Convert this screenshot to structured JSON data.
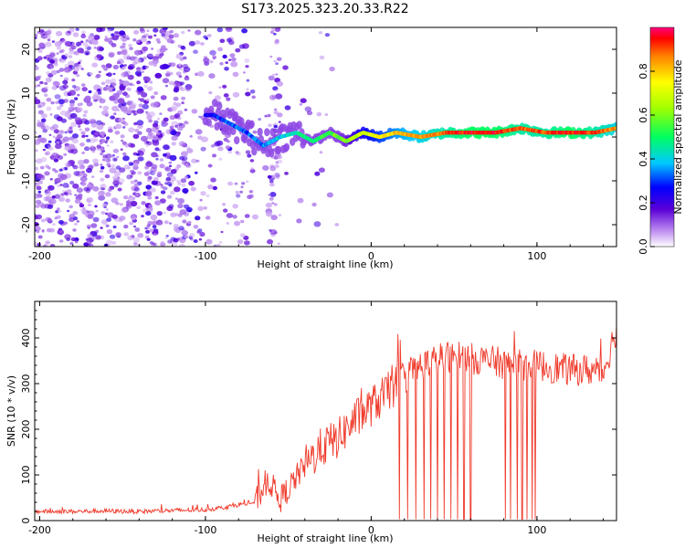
{
  "title": "S173.2025.323.20.33.R22",
  "colors": {
    "snr_line": "#ef3b2c",
    "ridge_hot": "#ff1a1a",
    "scatter_purple": "#6a1fd6",
    "scatter_light": "#c9b3f2"
  },
  "chart_data": [
    {
      "type": "heatmap",
      "name": "spectrogram",
      "xlabel": "Height of straight line (km)",
      "ylabel": "Frequency (Hz)",
      "xlim": [
        -203,
        148
      ],
      "ylim": [
        -25,
        25
      ],
      "x_ticks": [
        -200,
        -100,
        0,
        100
      ],
      "y_ticks": [
        -20,
        -10,
        0,
        10,
        20
      ],
      "grid": false,
      "colorbar": {
        "label": "Normalized spectral amplitude",
        "range": [
          0.0,
          1.0
        ],
        "ticks": [
          0.0,
          0.2,
          0.4,
          0.6,
          0.8
        ],
        "colormap": "rainbow (white/violet low → red high)"
      },
      "ridge": {
        "description": "dominant frequency band",
        "x": [
          -95,
          -85,
          -75,
          -65,
          -55,
          -45,
          -35,
          -25,
          -15,
          -5,
          5,
          15,
          30,
          45,
          60,
          75,
          90,
          105,
          120,
          135,
          148
        ],
        "freq": [
          5,
          3,
          1,
          -2,
          0,
          1,
          -1,
          1,
          -1,
          1,
          0,
          1,
          0,
          1,
          1,
          1,
          2,
          1,
          1,
          1,
          2
        ],
        "amplitude": [
          0.25,
          0.35,
          0.3,
          0.35,
          0.4,
          0.45,
          0.5,
          0.55,
          0.6,
          0.7,
          0.75,
          0.8,
          0.85,
          0.9,
          0.95,
          0.95,
          0.9,
          0.9,
          0.95,
          0.9,
          0.85
        ]
      },
      "noise_region": {
        "x_range": [
          -203,
          -60
        ],
        "freq_range": [
          -25,
          25
        ],
        "amplitude_range": [
          0.0,
          0.25
        ]
      }
    },
    {
      "type": "line",
      "name": "snr",
      "xlabel": "Height of straight line (km)",
      "ylabel": "SNR (10 * v/v)",
      "xlim": [
        -203,
        148
      ],
      "ylim": [
        0,
        480
      ],
      "x_ticks": [
        -200,
        -100,
        0,
        100
      ],
      "y_ticks": [
        0,
        100,
        200,
        300,
        400
      ],
      "grid": false,
      "series": [
        {
          "x": [
            -200,
            -180,
            -160,
            -140,
            -120,
            -100,
            -90,
            -80,
            -70,
            -62,
            -55,
            -48,
            -40,
            -30,
            -20,
            -10,
            0,
            10,
            20,
            30,
            40,
            50,
            60,
            70,
            80,
            90,
            100,
            110,
            120,
            130,
            140,
            148
          ],
          "values": [
            20,
            20,
            21,
            20,
            22,
            24,
            28,
            35,
            40,
            90,
            45,
            80,
            120,
            160,
            180,
            220,
            250,
            280,
            310,
            340,
            355,
            360,
            355,
            350,
            345,
            340,
            340,
            335,
            330,
            330,
            325,
            420
          ]
        }
      ],
      "dropouts_to_zero_x": [
        17,
        22,
        27,
        32,
        36,
        40,
        44,
        48,
        52,
        56,
        60,
        81,
        84,
        88,
        91,
        94,
        97,
        99
      ]
    }
  ]
}
